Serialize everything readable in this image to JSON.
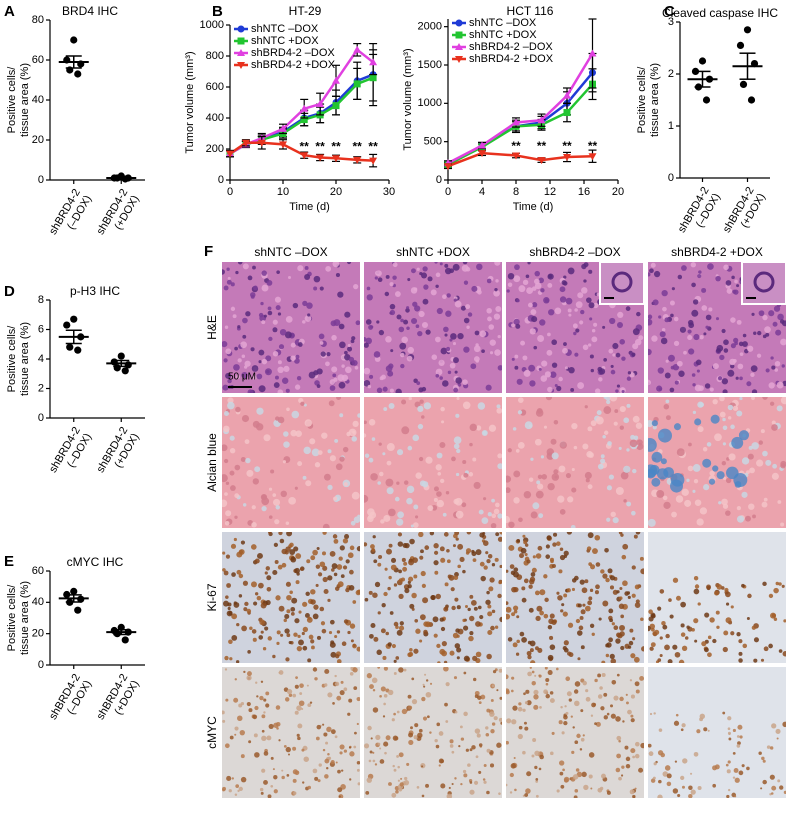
{
  "panel_labels": [
    "A",
    "B",
    "C",
    "D",
    "E",
    "F"
  ],
  "chart_data": [
    {
      "type": "dot",
      "title": "BRD4 IHC",
      "ylabel": [
        "Positive cells/",
        "tissue area (%)"
      ],
      "categories": [
        [
          "shBRD4-2",
          "(–DOX)"
        ],
        [
          "shBRD4-2",
          "(+DOX)"
        ]
      ],
      "values": [
        [
          70,
          60,
          58,
          55,
          53
        ],
        [
          2,
          1,
          1,
          1,
          0.5
        ]
      ],
      "means": [
        59,
        1
      ],
      "sems": [
        3,
        0.5
      ],
      "ylim": [
        0,
        80
      ],
      "yticks": [
        0,
        20,
        40,
        60,
        80
      ],
      "color": "#000000"
    },
    {
      "type": "line",
      "title": "HT-29",
      "xlabel": "Time (d)",
      "ylabel": "Tumor volume (mm³)",
      "x": [
        0,
        3,
        6,
        10,
        14,
        17,
        20,
        24,
        27
      ],
      "xlim": [
        0,
        30
      ],
      "xticks": [
        0,
        10,
        20,
        30
      ],
      "ylim": [
        0,
        1000
      ],
      "yticks": [
        0,
        200,
        400,
        600,
        800,
        1000
      ],
      "legend": "upper left",
      "series": [
        {
          "name": "shNTC –DOX",
          "color": "#1f3bd6",
          "marker": "circle",
          "values": [
            170,
            230,
            260,
            310,
            400,
            430,
            500,
            640,
            680
          ],
          "errors": [
            20,
            20,
            30,
            30,
            50,
            60,
            80,
            120,
            200
          ]
        },
        {
          "name": "shNTC +DOX",
          "color": "#22c531",
          "marker": "square",
          "values": [
            170,
            230,
            260,
            300,
            390,
            420,
            480,
            620,
            660
          ],
          "errors": [
            20,
            20,
            20,
            30,
            40,
            50,
            60,
            100,
            150
          ]
        },
        {
          "name": "shBRD4-2 –DOX",
          "color": "#e040e0",
          "marker": "triangle",
          "values": [
            170,
            230,
            270,
            330,
            460,
            490,
            640,
            840,
            760
          ],
          "errors": [
            20,
            20,
            30,
            30,
            60,
            70,
            100,
            40,
            80
          ]
        },
        {
          "name": "shBRD4-2 +DOX",
          "color": "#e8321e",
          "marker": "triangle-down",
          "values": [
            170,
            240,
            240,
            230,
            160,
            145,
            140,
            130,
            125
          ],
          "errors": [
            20,
            20,
            40,
            30,
            20,
            20,
            20,
            20,
            40
          ]
        }
      ],
      "annotations": [
        {
          "text": "**",
          "x": 14,
          "y": 210
        },
        {
          "text": "**",
          "x": 17,
          "y": 210
        },
        {
          "text": "**",
          "x": 20,
          "y": 210
        },
        {
          "text": "**",
          "x": 24,
          "y": 210
        },
        {
          "text": "**",
          "x": 27,
          "y": 210
        }
      ]
    },
    {
      "type": "line",
      "title": "HCT 116",
      "xlabel": "Time (d)",
      "ylabel": "Tumor volume (mm³)",
      "x": [
        0,
        4,
        8,
        11,
        14,
        17
      ],
      "xlim": [
        0,
        20
      ],
      "xticks": [
        0,
        4,
        8,
        12,
        16,
        20
      ],
      "ylim": [
        0,
        2100
      ],
      "yticks": [
        0,
        500,
        1000,
        1500,
        2000
      ],
      "legend": "upper left",
      "series": [
        {
          "name": "shNTC –DOX",
          "color": "#1f3bd6",
          "marker": "circle",
          "values": [
            200,
            450,
            700,
            750,
            1000,
            1400
          ],
          "errors": [
            30,
            40,
            80,
            80,
            150,
            250
          ]
        },
        {
          "name": "shNTC +DOX",
          "color": "#22c531",
          "marker": "square",
          "values": [
            200,
            430,
            700,
            720,
            880,
            1250
          ],
          "errors": [
            30,
            40,
            60,
            70,
            120,
            200
          ]
        },
        {
          "name": "shBRD4-2 –DOX",
          "color": "#e040e0",
          "marker": "triangle",
          "values": [
            220,
            450,
            750,
            780,
            1100,
            1650
          ],
          "errors": [
            30,
            40,
            60,
            80,
            100,
            450
          ]
        },
        {
          "name": "shBRD4-2 +DOX",
          "color": "#e8321e",
          "marker": "triangle-down",
          "values": [
            180,
            350,
            320,
            260,
            300,
            310
          ],
          "errors": [
            30,
            30,
            30,
            30,
            60,
            80
          ]
        }
      ],
      "annotations": [
        {
          "text": "**",
          "x": 8,
          "y": 430
        },
        {
          "text": "**",
          "x": 11,
          "y": 430
        },
        {
          "text": "**",
          "x": 14,
          "y": 430
        },
        {
          "text": "**",
          "x": 17,
          "y": 430
        }
      ]
    },
    {
      "type": "dot",
      "title": "Cleaved caspase IHC",
      "ylabel": [
        "Positive cells/",
        "tissue area (%)"
      ],
      "categories": [
        [
          "shBRD4-2",
          "(–DOX)"
        ],
        [
          "shBRD4-2",
          "(+DOX)"
        ]
      ],
      "values": [
        [
          2.25,
          2.05,
          1.9,
          1.75,
          1.5
        ],
        [
          2.85,
          2.55,
          2.2,
          1.8,
          1.5
        ]
      ],
      "means": [
        1.9,
        2.15
      ],
      "sems": [
        0.15,
        0.25
      ],
      "ylim": [
        0,
        3
      ],
      "yticks": [
        0,
        1,
        2,
        3
      ],
      "color": "#000000"
    },
    {
      "type": "dot",
      "title": "p-H3 IHC",
      "ylabel": [
        "Positive cells/",
        "tissue area (%)"
      ],
      "categories": [
        [
          "shBRD4-2",
          "(–DOX)"
        ],
        [
          "shBRD4-2",
          "(+DOX)"
        ]
      ],
      "values": [
        [
          6.7,
          6.3,
          5.5,
          4.8,
          4.6
        ],
        [
          4.2,
          3.8,
          3.6,
          3.4,
          3.2
        ]
      ],
      "means": [
        5.5,
        3.7
      ],
      "sems": [
        0.45,
        0.2
      ],
      "ylim": [
        0,
        8
      ],
      "yticks": [
        0,
        2,
        4,
        6,
        8
      ],
      "color": "#000000"
    },
    {
      "type": "dot",
      "title": "cMYC IHC",
      "ylabel": [
        "Positive cells/",
        "tissue area (%)"
      ],
      "categories": [
        [
          "shBRD4-2",
          "(–DOX)"
        ],
        [
          "shBRD4-2",
          "(+DOX)"
        ]
      ],
      "values": [
        [
          47,
          45,
          42,
          40,
          35
        ],
        [
          24,
          22,
          21,
          20,
          16
        ]
      ],
      "means": [
        42.5,
        21
      ],
      "sems": [
        2.3,
        1.5
      ],
      "ylim": [
        0,
        60
      ],
      "yticks": [
        0,
        20,
        40,
        60
      ],
      "color": "#000000"
    }
  ],
  "figure_f": {
    "columns": [
      "shNTC –DOX",
      "shNTC +DOX",
      "shBRD4-2 –DOX",
      "shBRD4-2 +DOX"
    ],
    "rows": [
      "H&E",
      "Alcian blue",
      "Ki-67",
      "cMYC"
    ],
    "scale_bar": "50 μM"
  }
}
